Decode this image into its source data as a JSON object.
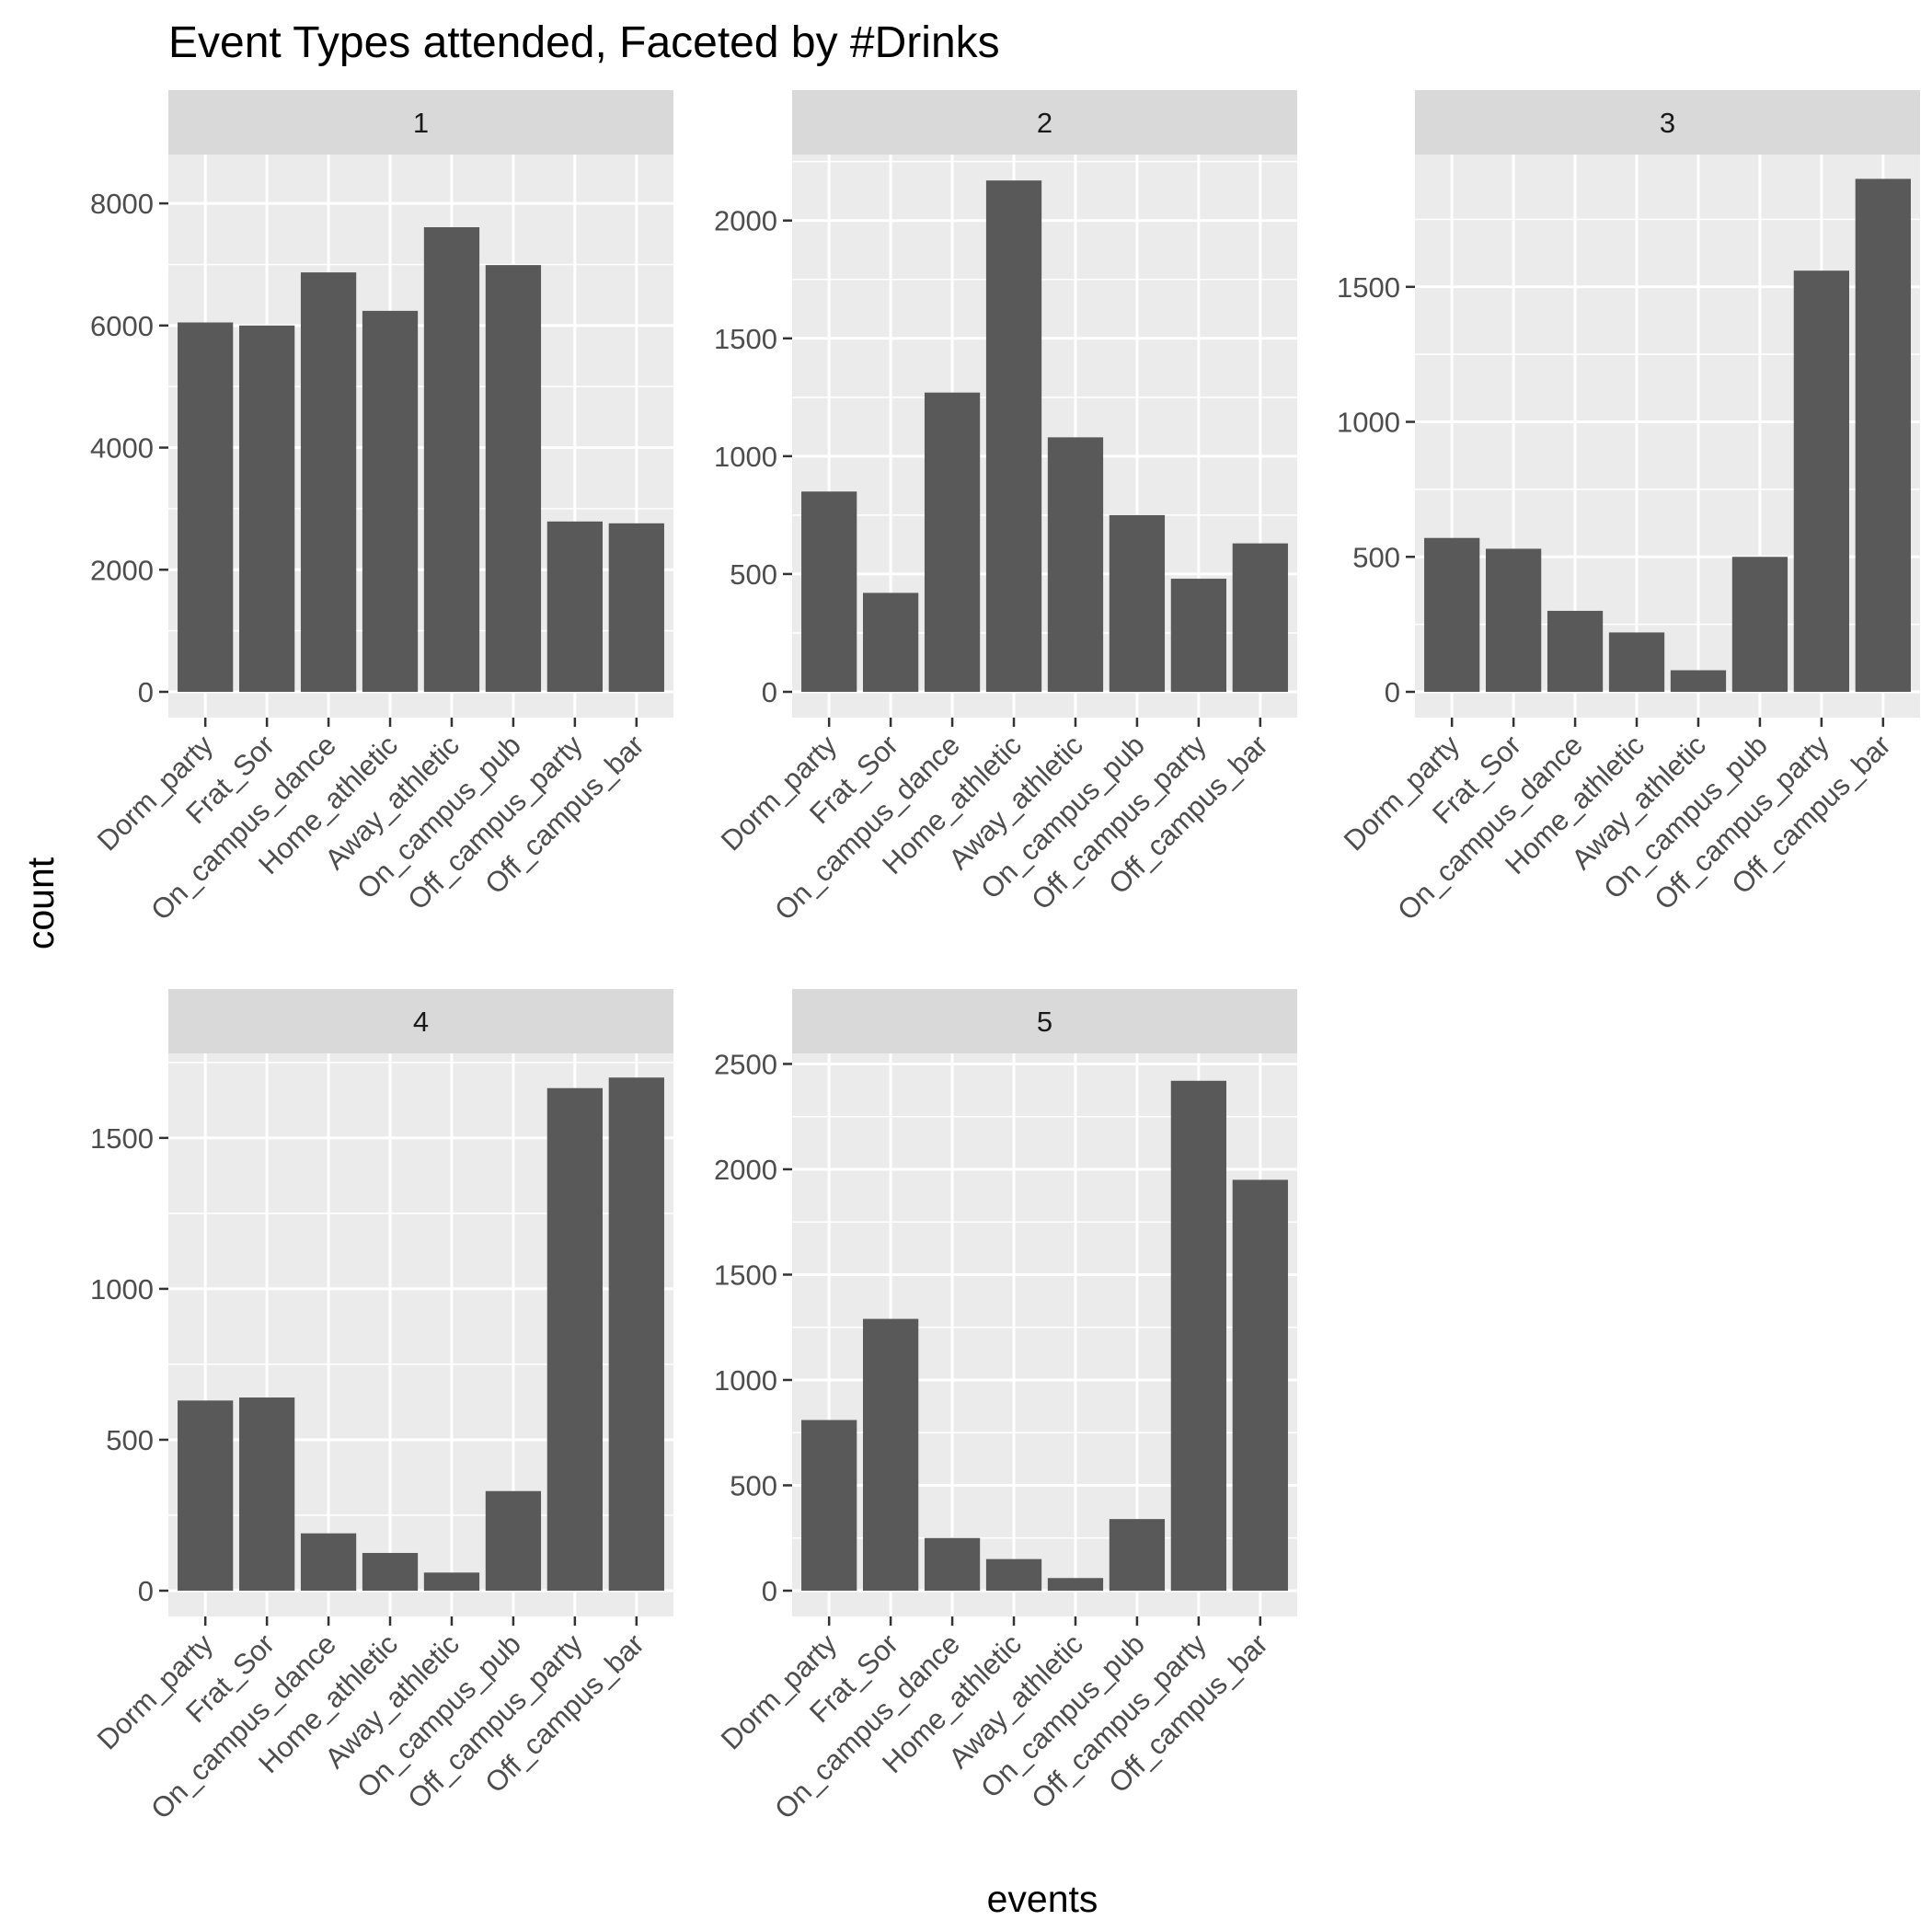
{
  "chart_data": {
    "type": "bar",
    "title": "Event Types attended, Faceted by #Drinks",
    "xlabel": "events",
    "ylabel": "count",
    "grid": true,
    "categories": [
      "Dorm_party",
      "Frat_Sor",
      "On_campus_dance",
      "Home_athletic",
      "Away_athletic",
      "On_campus_pub",
      "Off_campus_party",
      "Off_campus_bar"
    ],
    "series": [
      {
        "name": "1",
        "values": [
          6050,
          6000,
          6870,
          6240,
          7610,
          6990,
          2790,
          2760
        ],
        "ylim": [
          0,
          8800
        ],
        "yticks": [
          "0",
          "2000",
          "4000",
          "6000",
          "8000"
        ]
      },
      {
        "name": "2",
        "values": [
          850,
          420,
          1270,
          2170,
          1080,
          750,
          480,
          630
        ],
        "ylim": [
          0,
          2280
        ],
        "yticks": [
          "0",
          "500",
          "1000",
          "1500",
          "2000"
        ]
      },
      {
        "name": "3",
        "values": [
          570,
          530,
          300,
          220,
          80,
          500,
          1560,
          1900
        ],
        "ylim": [
          0,
          1990
        ],
        "yticks": [
          "0",
          "500",
          "1000",
          "1500"
        ]
      },
      {
        "name": "4",
        "values": [
          630,
          640,
          190,
          125,
          60,
          330,
          1665,
          1700
        ],
        "ylim": [
          0,
          1780
        ],
        "yticks": [
          "0",
          "500",
          "1000",
          "1500"
        ]
      },
      {
        "name": "5",
        "values": [
          810,
          1290,
          250,
          150,
          60,
          340,
          2420,
          1950
        ],
        "ylim": [
          0,
          2550
        ],
        "yticks": [
          "0",
          "500",
          "1000",
          "1500",
          "2000",
          "2500"
        ]
      }
    ],
    "colors": {
      "bar": "#595959",
      "panel_bg": "#ebebeb",
      "strip_bg": "#d9d9d9",
      "grid": "#ffffff",
      "tick": "#333333"
    }
  }
}
